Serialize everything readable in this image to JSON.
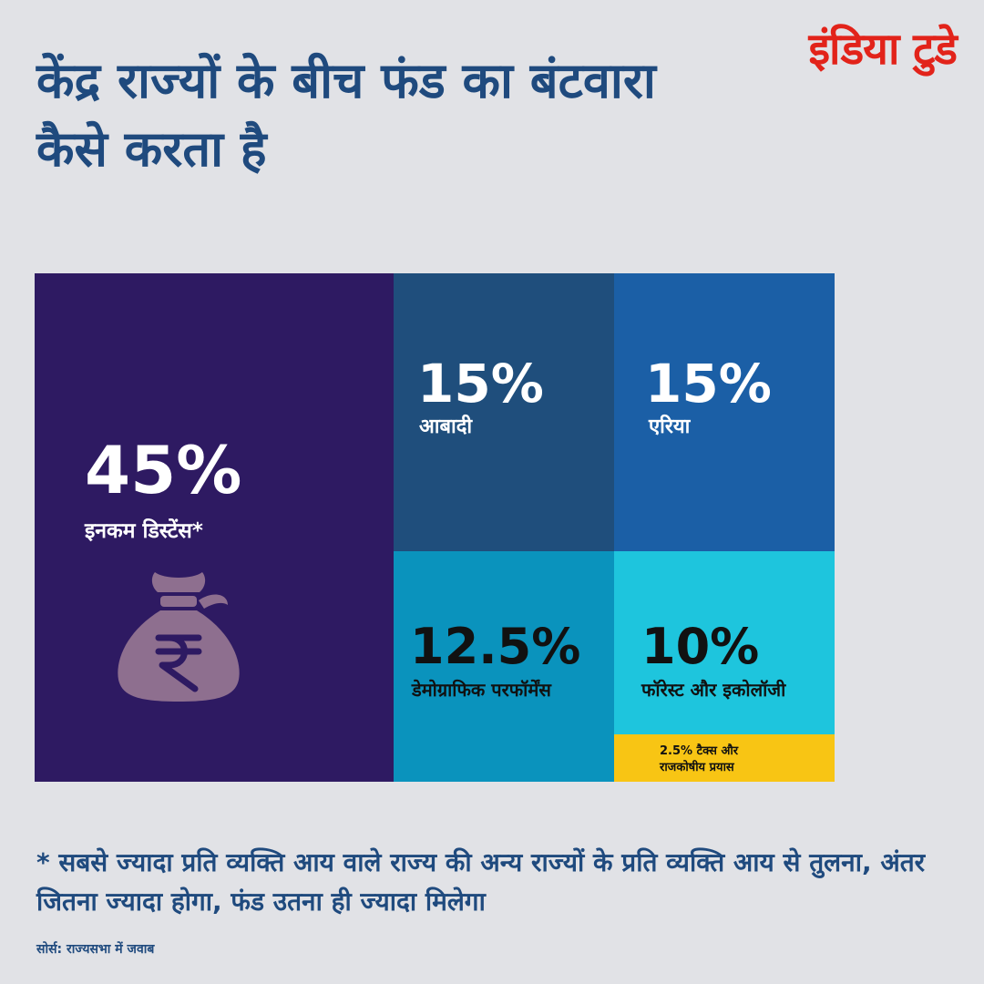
{
  "brand": {
    "logo_text": "इंडिया टुडे"
  },
  "title": "केंद्र राज्यों के बीच फंड का बंटवारा कैसे करता है",
  "chart_data": {
    "type": "treemap",
    "items": [
      {
        "value_label": "45%",
        "value": 45,
        "label": "इनकम डिस्टेंस*",
        "color": "#2e1a62",
        "text_color": "#ffffff"
      },
      {
        "value_label": "15%",
        "value": 15,
        "label": "आबादी",
        "color": "#1f4e7c",
        "text_color": "#ffffff"
      },
      {
        "value_label": "15%",
        "value": 15,
        "label": "एरिया",
        "color": "#1b5fa6",
        "text_color": "#ffffff"
      },
      {
        "value_label": "12.5%",
        "value": 12.5,
        "label": "डेमोग्राफिक परफॉर्मेंस",
        "color": "#0a93bd",
        "text_color": "#111111"
      },
      {
        "value_label": "10%",
        "value": 10,
        "label": "फॉरेस्ट और इकोलॉजी",
        "color": "#1ec5dd",
        "text_color": "#111111"
      },
      {
        "value_label": "2.5%",
        "value": 2.5,
        "label": "2.5% टैक्स और राजकोषीय प्रयास",
        "color": "#f8c514",
        "text_color": "#111111"
      }
    ],
    "icon": "money-bag-rupee-icon"
  },
  "footnote": "* सबसे ज्यादा प्रति व्यक्ति आय वाले राज्य की अन्य राज्यों के प्रति व्यक्ति आय से तुलना, अंतर जितना ज्यादा होगा, फंड उतना ही ज्यादा मिलेगा",
  "source": "सोर्स: राज्यसभा में जवाब"
}
